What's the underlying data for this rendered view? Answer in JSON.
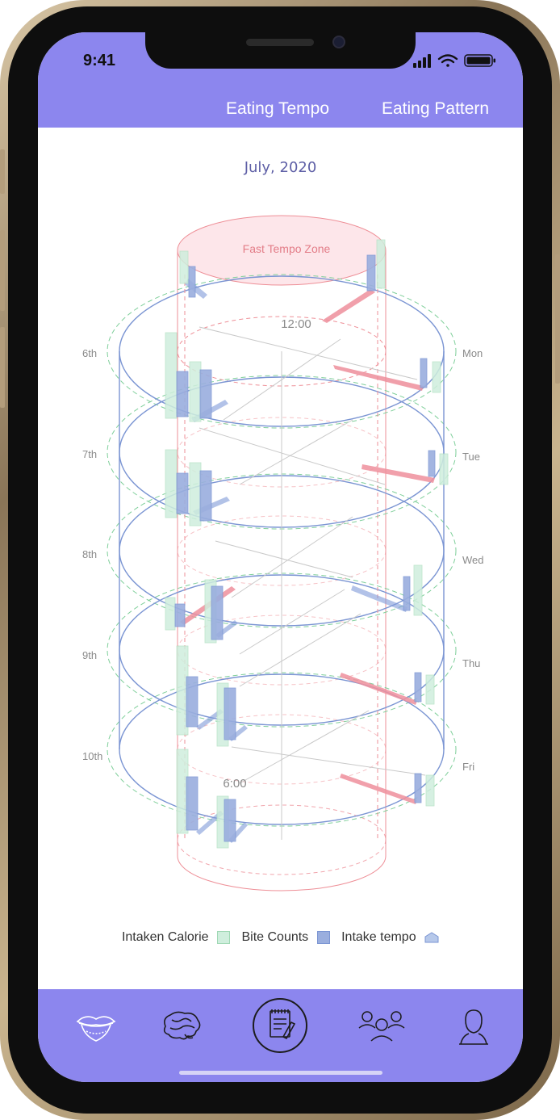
{
  "status_bar": {
    "time": "9:41"
  },
  "tabs": [
    {
      "label": "Eating Tempo"
    },
    {
      "label": "Eating Pattern"
    }
  ],
  "month_label": "July, 2020",
  "chart_data": {
    "type": "3d-cylinder-stack",
    "zone_label": "Fast Tempo Zone",
    "time_labels": [
      "12:00",
      "6:00"
    ],
    "dates": [
      "6th",
      "7th",
      "8th",
      "9th",
      "10th"
    ],
    "days": [
      "Mon",
      "Tue",
      "Wed",
      "Thu",
      "Fri"
    ],
    "legend": [
      {
        "label": "Intaken Calorie",
        "color": "#cfeedd"
      },
      {
        "label": "Bite Counts",
        "color": "#9aaede"
      },
      {
        "label": "Intake tempo",
        "color": "#b6c8ea"
      }
    ]
  },
  "bottom_nav": [
    {
      "icon": "lips-icon"
    },
    {
      "icon": "brain-icon"
    },
    {
      "icon": "notepad-icon",
      "active": true
    },
    {
      "icon": "people-group-icon"
    },
    {
      "icon": "person-icon"
    }
  ],
  "colors": {
    "header": "#8c86ee",
    "ring_blue": "#7b95d3",
    "ring_green": "#7fcf9a",
    "zone_red": "#ee8f97",
    "calorie_green": "#cfeedd",
    "bite_blue": "#9aaede",
    "tempo_red": "#ee8f9c"
  }
}
